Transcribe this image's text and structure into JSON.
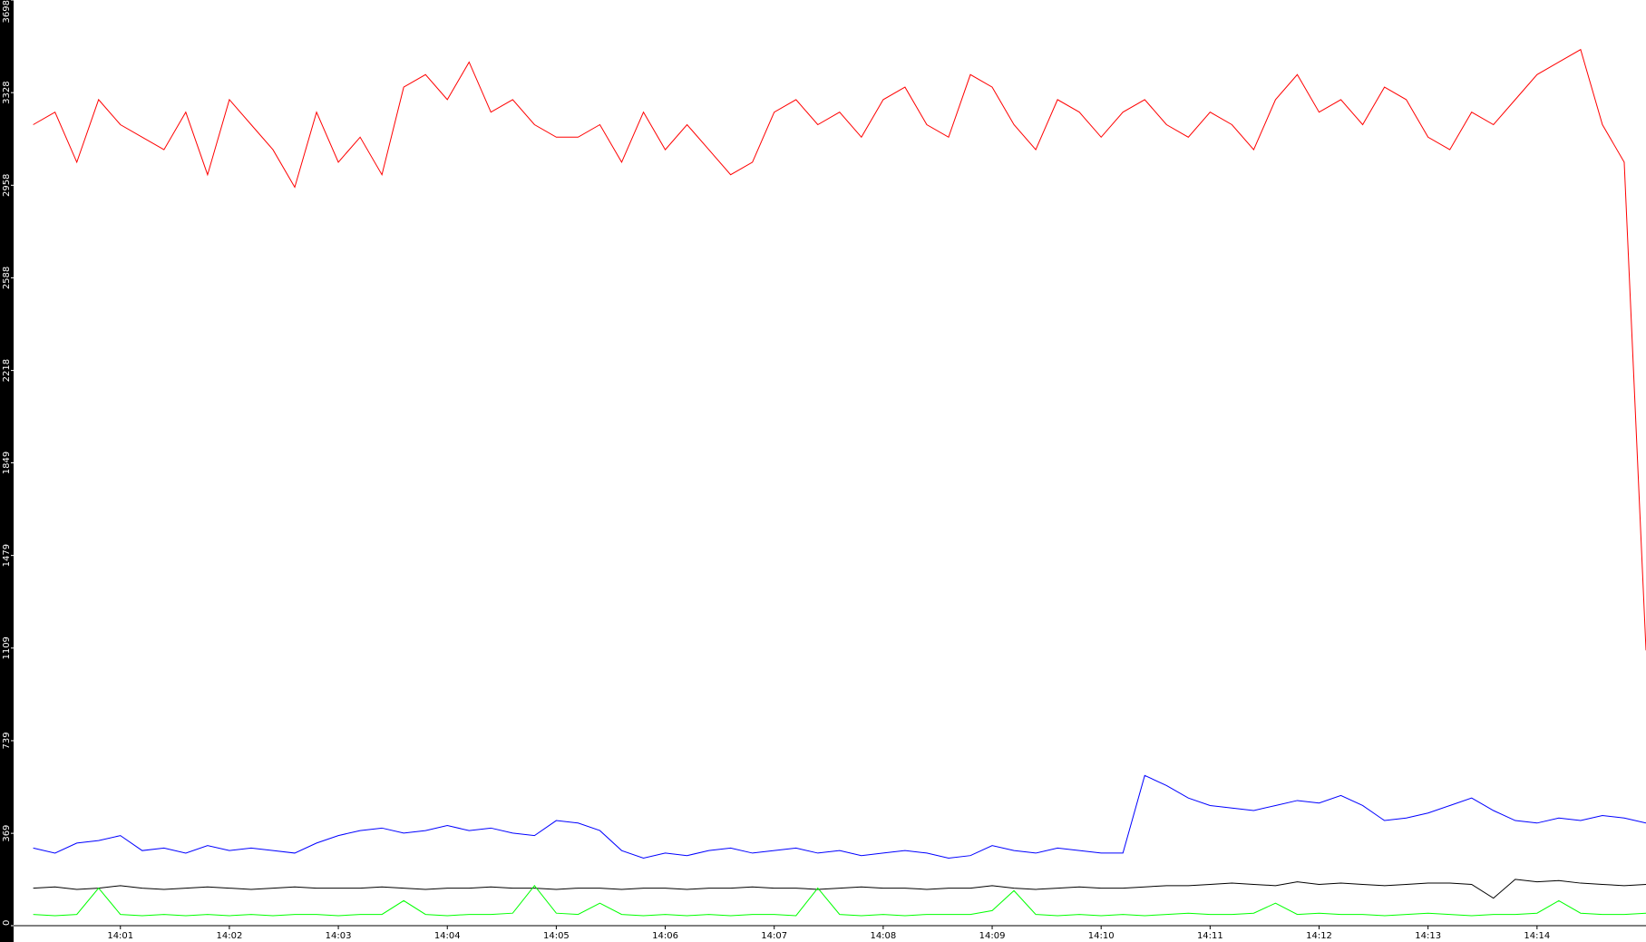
{
  "chart_data": {
    "type": "line",
    "x": [
      0.2,
      0.4,
      0.6,
      0.8,
      1.0,
      1.2,
      1.4,
      1.6,
      1.8,
      2.0,
      2.2,
      2.4,
      2.6,
      2.8,
      3.0,
      3.2,
      3.4,
      3.6,
      3.8,
      4.0,
      4.2,
      4.4,
      4.6,
      4.8,
      5.0,
      5.2,
      5.4,
      5.6,
      5.8,
      6.0,
      6.2,
      6.4,
      6.6,
      6.8,
      7.0,
      7.2,
      7.4,
      7.6,
      7.8,
      8.0,
      8.2,
      8.4,
      8.6,
      8.8,
      9.0,
      9.2,
      9.4,
      9.6,
      9.8,
      10.0,
      10.2,
      10.4,
      10.6,
      10.8,
      11.0,
      11.2,
      11.4,
      11.6,
      11.8,
      12.0,
      12.2,
      12.4,
      12.6,
      12.8,
      13.0,
      13.2,
      13.4,
      13.6,
      13.8,
      14.0,
      14.2,
      14.4,
      14.6,
      14.8,
      15.0
    ],
    "series": [
      {
        "color": "#ff0000",
        "values": [
          3200,
          3250,
          3050,
          3300,
          3200,
          3150,
          3100,
          3250,
          3000,
          3300,
          3200,
          3100,
          2950,
          3250,
          3050,
          3150,
          3000,
          3350,
          3400,
          3300,
          3450,
          3250,
          3300,
          3200,
          3150,
          3150,
          3200,
          3050,
          3250,
          3100,
          3200,
          3100,
          3000,
          3050,
          3250,
          3300,
          3200,
          3250,
          3150,
          3300,
          3350,
          3200,
          3150,
          3400,
          3350,
          3200,
          3100,
          3300,
          3250,
          3150,
          3250,
          3300,
          3200,
          3150,
          3250,
          3200,
          3100,
          3300,
          3400,
          3250,
          3300,
          3200,
          3350,
          3300,
          3150,
          3100,
          3250,
          3200,
          3300,
          3400,
          3450,
          3500,
          3200,
          3050,
          1100
        ]
      },
      {
        "color": "#0000ff",
        "values": [
          310,
          290,
          330,
          340,
          360,
          300,
          310,
          290,
          320,
          300,
          310,
          300,
          290,
          330,
          360,
          380,
          390,
          370,
          380,
          400,
          380,
          390,
          370,
          360,
          420,
          410,
          380,
          300,
          270,
          290,
          280,
          300,
          310,
          290,
          300,
          310,
          290,
          300,
          280,
          290,
          300,
          290,
          270,
          280,
          320,
          300,
          290,
          310,
          300,
          290,
          290,
          600,
          560,
          510,
          480,
          470,
          460,
          480,
          500,
          490,
          520,
          480,
          420,
          430,
          450,
          480,
          510,
          460,
          420,
          410,
          430,
          420,
          440,
          430,
          410
        ]
      },
      {
        "color": "#000000",
        "values": [
          150,
          155,
          145,
          150,
          160,
          150,
          145,
          150,
          155,
          150,
          145,
          150,
          155,
          150,
          150,
          150,
          155,
          150,
          145,
          150,
          150,
          155,
          150,
          150,
          145,
          150,
          150,
          145,
          150,
          150,
          145,
          150,
          150,
          155,
          150,
          150,
          145,
          150,
          155,
          150,
          150,
          145,
          150,
          150,
          160,
          150,
          145,
          150,
          155,
          150,
          150,
          155,
          160,
          160,
          165,
          170,
          165,
          160,
          175,
          165,
          170,
          165,
          160,
          165,
          170,
          170,
          165,
          110,
          185,
          175,
          180,
          170,
          165,
          160,
          165
        ]
      },
      {
        "color": "#00ff00",
        "values": [
          45,
          40,
          45,
          150,
          45,
          40,
          45,
          40,
          45,
          40,
          45,
          40,
          45,
          45,
          40,
          45,
          45,
          100,
          45,
          40,
          45,
          45,
          50,
          160,
          50,
          45,
          90,
          45,
          40,
          45,
          40,
          45,
          40,
          45,
          45,
          40,
          150,
          45,
          40,
          45,
          40,
          45,
          45,
          45,
          60,
          140,
          45,
          40,
          45,
          40,
          45,
          40,
          45,
          50,
          45,
          45,
          50,
          90,
          45,
          50,
          45,
          45,
          40,
          45,
          50,
          45,
          40,
          45,
          45,
          50,
          100,
          50,
          45,
          45,
          50
        ]
      }
    ],
    "xlim": [
      0.02,
      15.0
    ],
    "xticks": [
      {
        "value": 1,
        "label": "14:01"
      },
      {
        "value": 2,
        "label": "14:02"
      },
      {
        "value": 3,
        "label": "14:03"
      },
      {
        "value": 4,
        "label": "14:04"
      },
      {
        "value": 5,
        "label": "14:05"
      },
      {
        "value": 6,
        "label": "14:06"
      },
      {
        "value": 7,
        "label": "14:07"
      },
      {
        "value": 8,
        "label": "14:08"
      },
      {
        "value": 9,
        "label": "14:09"
      },
      {
        "value": 10,
        "label": "14:10"
      },
      {
        "value": 11,
        "label": "14:11"
      },
      {
        "value": 12,
        "label": "14:12"
      },
      {
        "value": 13,
        "label": "14:13"
      },
      {
        "value": 14,
        "label": "14:14"
      }
    ],
    "ylim": [
      0,
      3698
    ],
    "yticks": [
      0,
      369,
      739,
      1109,
      1479,
      1849,
      2218,
      2588,
      2958,
      3328,
      3698
    ]
  }
}
